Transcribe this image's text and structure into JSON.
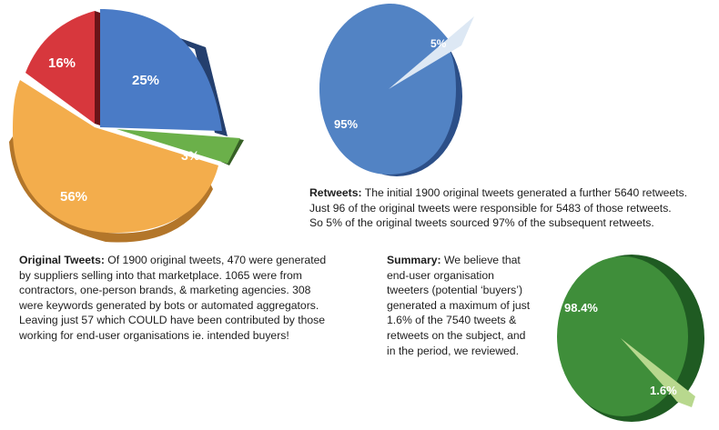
{
  "chart_data": [
    {
      "type": "pie",
      "id": "original-tweets",
      "slices": [
        {
          "label": "25%",
          "value": 25,
          "color": "#4a7bc6"
        },
        {
          "label": "3%",
          "value": 3,
          "color": "#6bb04a"
        },
        {
          "label": "56%",
          "value": 56,
          "color": "#f3ad4c"
        },
        {
          "label": "16%",
          "value": 16,
          "color": "#d7373d"
        }
      ]
    },
    {
      "type": "pie",
      "id": "retweets",
      "slices": [
        {
          "label": "5%",
          "value": 5,
          "color": "#dde8f4"
        },
        {
          "label": "95%",
          "value": 95,
          "color": "#5283c4"
        }
      ]
    },
    {
      "type": "pie",
      "id": "summary",
      "slices": [
        {
          "label": "98.4%",
          "value": 98.4,
          "color": "#3f8e3a"
        },
        {
          "label": "1.6%",
          "value": 1.6,
          "color": "#b8d88e"
        }
      ]
    }
  ],
  "captions": {
    "retweets": {
      "heading": "Retweets:",
      "line1": " The initial 1900 original tweets generated a further 5640 retweets.",
      "line2": "Just 96 of the original tweets were responsible for 5483 of those retweets.",
      "line3": "So 5% of the original tweets sourced 97% of the subsequent retweets."
    },
    "original": {
      "heading": "Original Tweets:",
      "line1": " Of 1900 original tweets, 470 were generated",
      "line2": "by suppliers selling into that marketplace. 1065 were from",
      "line3": "contractors, one-person brands, & marketing agencies. 308",
      "line4": "were keywords generated by bots or automated aggregators.",
      "line5": "Leaving just 57 which COULD have been contributed by those",
      "line6": "working for end-user organisations ie. intended buyers!"
    },
    "summary": {
      "heading": "Summary:",
      "line1": " We believe that",
      "line2": "end-user organisation",
      "line3": "tweeters (potential ‘buyers’)",
      "line4": "generated a maximum of just",
      "line5": "1.6% of the 7540 tweets &",
      "line6": "retweets on the subject, and",
      "line7": "in the period, we reviewed."
    }
  }
}
